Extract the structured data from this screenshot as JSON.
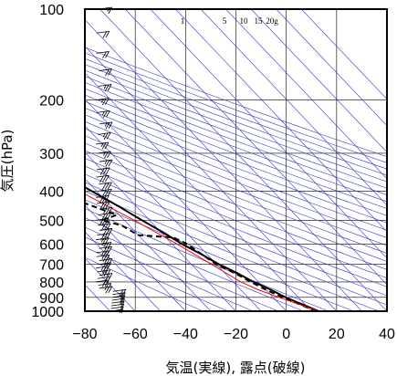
{
  "chart_data": {
    "type": "skew-t",
    "xlabel": "気温(実線), 露点(破線)",
    "ylabel": "気圧(hPa)",
    "xlim": [
      -80,
      40
    ],
    "ylim": [
      1000,
      100
    ],
    "y_scale": "log",
    "grid": true,
    "x_ticks": [
      -80,
      -60,
      -40,
      -20,
      0,
      20,
      40
    ],
    "y_ticks": [
      100,
      200,
      300,
      400,
      500,
      600,
      700,
      800,
      900,
      1000
    ],
    "mixing_ratio_labels": [
      "1",
      "5",
      "10",
      "15",
      "20g"
    ],
    "colors": {
      "grid": "#000000",
      "dry_adiabats": "#3333cc",
      "parcel_path": "#ff0000",
      "temperature": "#000000",
      "dewpoint": "#000000",
      "wind_barbs": "#000000"
    },
    "series": [
      {
        "name": "気温",
        "style": "solid",
        "points": [
          [
            1000,
            13
          ],
          [
            975,
            11
          ],
          [
            950,
            9
          ],
          [
            925,
            7
          ],
          [
            900,
            5
          ],
          [
            850,
            2
          ],
          [
            800,
            -2
          ],
          [
            750,
            -5
          ],
          [
            700,
            -9
          ],
          [
            650,
            -12
          ],
          [
            600,
            -16
          ],
          [
            550,
            -19
          ],
          [
            500,
            -23
          ],
          [
            450,
            -27
          ],
          [
            400,
            -32
          ],
          [
            350,
            -38
          ],
          [
            300,
            -45
          ],
          [
            250,
            -52
          ],
          [
            200,
            -58
          ],
          [
            175,
            -61
          ],
          [
            150,
            -65
          ],
          [
            125,
            -70
          ],
          [
            110,
            -74
          ],
          [
            100,
            -75
          ]
        ]
      },
      {
        "name": "露点",
        "style": "dashed",
        "points": [
          [
            1000,
            12
          ],
          [
            975,
            10
          ],
          [
            950,
            8
          ],
          [
            925,
            6
          ],
          [
            900,
            4
          ],
          [
            850,
            0
          ],
          [
            800,
            -3
          ],
          [
            750,
            -6
          ],
          [
            700,
            -10
          ],
          [
            650,
            -12
          ],
          [
            600,
            -14
          ],
          [
            570,
            -17
          ],
          [
            560,
            -30
          ],
          [
            520,
            -33
          ],
          [
            500,
            -39
          ],
          [
            480,
            -31
          ],
          [
            450,
            -37
          ],
          [
            400,
            -48
          ],
          [
            350,
            -55
          ],
          [
            300,
            -60
          ],
          [
            290,
            -63
          ],
          [
            285,
            -72
          ]
        ]
      },
      {
        "name": "parcel",
        "style": "solid",
        "points": [
          [
            1000,
            13
          ],
          [
            925,
            5
          ],
          [
            850,
            -3
          ],
          [
            800,
            -7
          ],
          [
            700,
            -12
          ],
          [
            600,
            -18
          ],
          [
            500,
            -26
          ],
          [
            400,
            -37
          ],
          [
            300,
            -52
          ],
          [
            250,
            -61
          ],
          [
            220,
            -67
          ],
          [
            210,
            -70
          ]
        ]
      }
    ],
    "wind_barbs": {
      "pressures": [
        1000,
        980,
        960,
        940,
        920,
        900,
        880,
        860,
        840,
        820,
        800,
        780,
        760,
        740,
        720,
        700,
        680,
        660,
        640,
        620,
        600,
        580,
        560,
        540,
        520,
        500,
        480,
        460,
        440,
        420,
        400,
        380,
        360,
        340,
        320,
        300,
        280,
        260,
        240,
        220,
        200,
        180,
        160,
        140,
        120,
        100
      ],
      "speed_kt": [
        5,
        10,
        10,
        15,
        15,
        15,
        15,
        20,
        20,
        20,
        20,
        20,
        20,
        25,
        25,
        25,
        25,
        25,
        25,
        25,
        25,
        25,
        30,
        30,
        30,
        30,
        30,
        30,
        30,
        30,
        30,
        30,
        30,
        30,
        25,
        25,
        25,
        25,
        25,
        25,
        25,
        25,
        20,
        20,
        20,
        15
      ]
    }
  }
}
